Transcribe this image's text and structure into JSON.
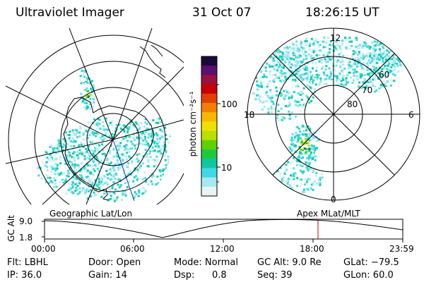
{
  "header": {
    "instrument": "Ultraviolet Imager",
    "date": "31 Oct 07",
    "time": "18:26:15 UT"
  },
  "colorbar": {
    "label": "photon cm⁻²s⁻¹",
    "ticks": [
      "100",
      "10"
    ],
    "colors": [
      "#1a0a3a",
      "#5a1070",
      "#9a1040",
      "#c80000",
      "#e04000",
      "#f08000",
      "#f8b800",
      "#f0e000",
      "#b8e000",
      "#60d000",
      "#20c840",
      "#10c8a0",
      "#40d8e8",
      "#a8e8f0",
      "#e8f4f4"
    ]
  },
  "left_map": {
    "caption": "Geographic Lat/Lon"
  },
  "right_map": {
    "caption": "Apex MLat/MLT",
    "mlt_labels": [
      "12",
      "18",
      "6",
      "0"
    ],
    "lat_labels": [
      "60",
      "70",
      "80"
    ]
  },
  "altitude_plot": {
    "ylabel": "GC Alt",
    "yticks": [
      "9.0",
      "1.8"
    ],
    "xticks": [
      "00:00",
      "06:00",
      "12:00",
      "18:00",
      "23:59"
    ]
  },
  "status": {
    "flt": "Flt: LBHL",
    "door": "Door: Open",
    "mode": "Mode: Normal",
    "gc_alt": "GC Alt: 9.0 Re",
    "glat": "GLat: −79.5",
    "ip": "IP: 36.0",
    "gain": "Gain: 14",
    "dsp_label": "Dsp:",
    "dsp_value": "0.8",
    "seq": "Seq: 39",
    "glon": "GLon:  60.0"
  }
}
